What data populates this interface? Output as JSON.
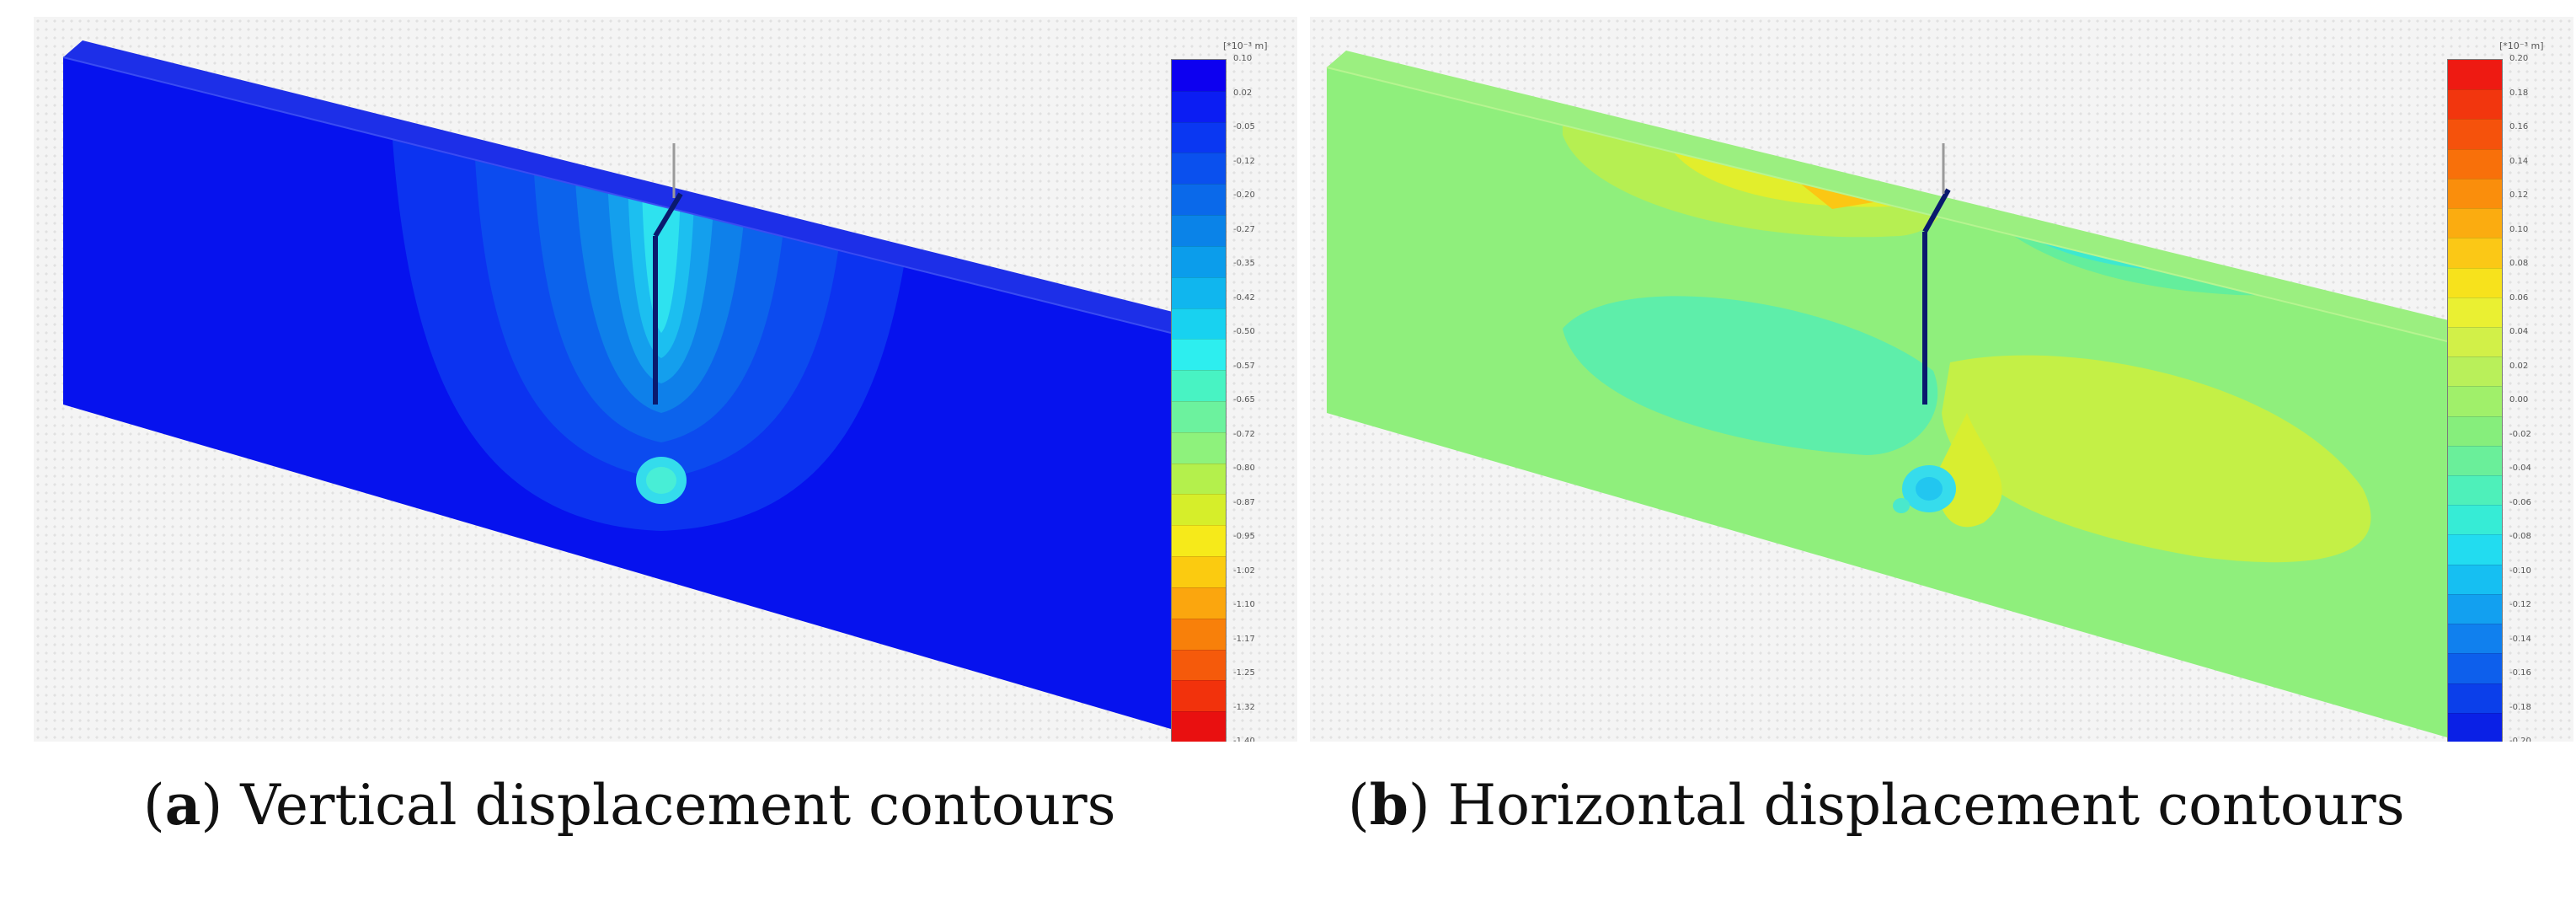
{
  "panels": [
    {
      "id": "a",
      "caption_letter": "a",
      "caption_text": "Vertical displacement contours",
      "legend_unit": "[*10⁻³ m]",
      "legend_colors": [
        "#0d00f0",
        "#0b1df3",
        "#0a37f2",
        "#0a50ee",
        "#0a69ea",
        "#0a83e8",
        "#0b9deb",
        "#10b6ee",
        "#18d2f0",
        "#2deeef",
        "#48f3c3",
        "#6cf29e",
        "#8ef27c",
        "#b4f04c",
        "#d6ee2a",
        "#f6ea1a",
        "#fbcb10",
        "#fba60e",
        "#f8800a",
        "#f55a0b",
        "#f2320c",
        "#e91010"
      ],
      "legend_ticks": [
        "0.10",
        "0.02",
        "-0.05",
        "-0.12",
        "-0.20",
        "-0.27",
        "-0.35",
        "-0.42",
        "-0.50",
        "-0.57",
        "-0.65",
        "-0.72",
        "-0.80",
        "-0.87",
        "-0.95",
        "-1.02",
        "-1.10",
        "-1.17",
        "-1.25",
        "-1.32",
        "-1.40"
      ]
    },
    {
      "id": "b",
      "caption_letter": "b",
      "caption_text": "Horizontal displacement contours",
      "legend_unit": "[*10⁻³ m]",
      "legend_colors": [
        "#ee1a12",
        "#f2360e",
        "#f5520c",
        "#f8700a",
        "#fa8e0c",
        "#fbac10",
        "#fbc816",
        "#f7e21c",
        "#eaf032",
        "#d2f048",
        "#b9f05a",
        "#a0f06a",
        "#86ee7c",
        "#6aef9a",
        "#4ef0ba",
        "#36ecd6",
        "#22dcf0",
        "#16bff2",
        "#12a0f0",
        "#1080ee",
        "#0d5fec",
        "#0b3fea",
        "#0a20e6"
      ],
      "legend_ticks": [
        "0.20",
        "0.18",
        "0.16",
        "0.14",
        "0.12",
        "0.10",
        "0.08",
        "0.06",
        "0.04",
        "0.02",
        "0.00",
        "-0.02",
        "-0.04",
        "-0.06",
        "-0.08",
        "-0.10",
        "-0.12",
        "-0.14",
        "-0.16",
        "-0.18",
        "-0.20"
      ]
    }
  ]
}
